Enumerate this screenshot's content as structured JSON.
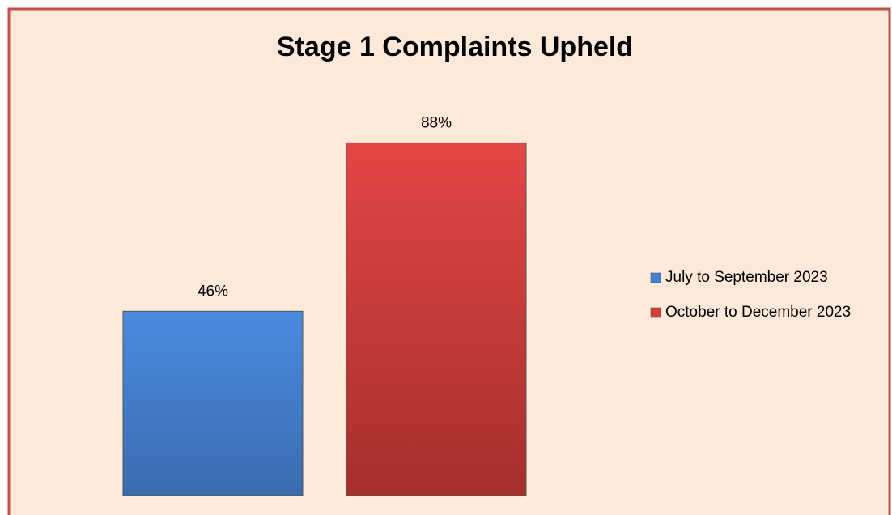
{
  "chart_data": {
    "type": "bar",
    "title": "Stage 1 Complaints Upheld",
    "categories": [
      null
    ],
    "series": [
      {
        "name": "July to September 2023",
        "color": "#4181d4",
        "values": [
          46
        ],
        "value_labels": [
          "46%"
        ]
      },
      {
        "name": "October to December 2023",
        "color": "#d83c3a",
        "values": [
          88
        ],
        "value_labels": [
          "88%"
        ]
      }
    ],
    "ylim": [
      0,
      100
    ],
    "grid": false,
    "legend": "right"
  }
}
